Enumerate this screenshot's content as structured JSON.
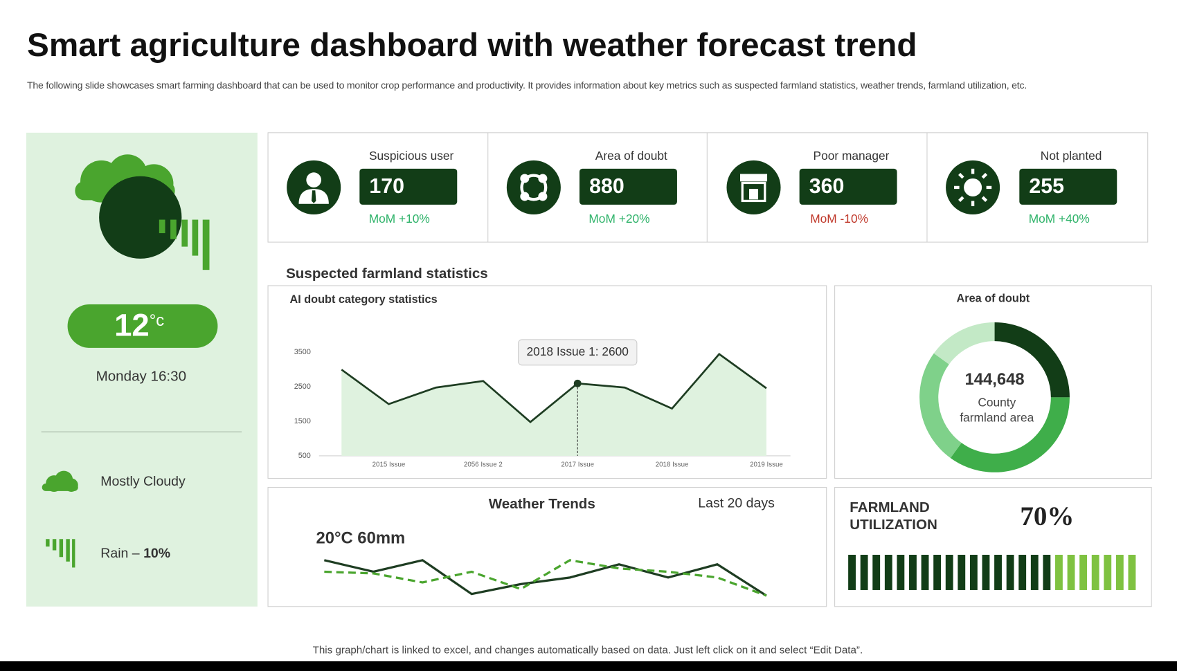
{
  "header": {
    "title": "Smart agriculture dashboard with weather forecast trend",
    "subtitle": "The following slide showcases smart farming dashboard that can be used to monitor crop performance and productivity. It provides information about key metrics such as suspected farmland statistics, weather trends, farmland utilization, etc."
  },
  "weather": {
    "temperature": 12,
    "unit": "°c",
    "time": "Monday 16:30",
    "condition": "Mostly Cloudy",
    "rain_label": "Rain –",
    "rain_value": "10%"
  },
  "kpis": [
    {
      "label": "Suspicious user",
      "value": 170,
      "change": "MoM +10%",
      "color": "#2fb36a"
    },
    {
      "label": "Area of doubt",
      "value": 880,
      "change": "MoM +20%",
      "color": "#2fb36a"
    },
    {
      "label": "Poor manager",
      "value": 360,
      "change": "MoM -10%",
      "color": "#c0392b"
    },
    {
      "label": "Not planted",
      "value": 255,
      "change": "MoM +40%",
      "color": "#2fb36a"
    }
  ],
  "section_title": "Suspected farmland statistics",
  "chart_data": [
    {
      "type": "line",
      "title": "AI doubt category statistics",
      "categories": [
        null,
        "2015 Issue",
        null,
        "2056 Issue 2",
        null,
        "2017 Issue",
        null,
        "2018 Issue",
        null,
        "2019 Issue"
      ],
      "values": [
        3000,
        2000,
        2480,
        2670,
        1480,
        2600,
        2480,
        1870,
        3450,
        2460
      ],
      "color": "#1e3d22",
      "fill": "#dff2df",
      "grid": false,
      "ylim": [
        500,
        3500
      ],
      "yticks": [
        500,
        1500,
        2500,
        3500
      ],
      "annotation": "2018 Issue 1: 2600"
    },
    {
      "type": "donut",
      "title": "Area of doubt",
      "center_value": "144,648",
      "center_label": [
        "County",
        "farmland area"
      ],
      "values": [
        25,
        35,
        25,
        15
      ],
      "colors": [
        "#123d17",
        "#3fae4a",
        "#7fd18a",
        "#c3e9c6"
      ]
    },
    {
      "type": "line",
      "title": "Weather Trends",
      "subtitle": "Last 20 days",
      "annotation": "20°C 60mm",
      "ylim": [
        0,
        10
      ],
      "grid": false,
      "series": [
        {
          "color": "#1e3d22",
          "style": "solid",
          "values": [
            9.6,
            6.8,
            9.6,
            1.4,
            3.8,
            5.4,
            8.6,
            5.4,
            8.6,
            1.0
          ]
        },
        {
          "color": "#4aa52e",
          "style": "dashed",
          "values": [
            6.8,
            6.4,
            4.2,
            6.8,
            2.6,
            9.6,
            7.6,
            6.8,
            5.4,
            1.0
          ]
        }
      ]
    },
    {
      "type": "progress",
      "title": [
        "FARMLAND",
        "UTILIZATION"
      ],
      "values": [
        70
      ],
      "value_labels": [
        "70%"
      ],
      "ylim": [
        0,
        100
      ],
      "color": "#123d17",
      "rest_color": "#7fc241"
    }
  ],
  "footer": "This graph/chart is linked to excel, and changes automatically based on data. Just left click on it and select “Edit Data”."
}
